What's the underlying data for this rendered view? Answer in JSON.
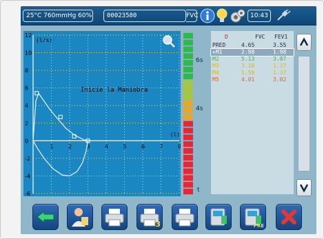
{
  "status": {
    "conditions": "25°C 760mmHg 60%",
    "patient_id": "00023580",
    "mode": "FVC",
    "time": "10:43"
  },
  "chart": {
    "y_unit": "(l/s)",
    "x_unit": "(l)",
    "message": "Inicie la Maniobra",
    "y_ticks": [
      "12",
      "10",
      "8",
      "6",
      "4",
      "2",
      "0",
      "-2",
      "-4",
      "-6"
    ],
    "x_ticks": [
      "1",
      "2",
      "3",
      "4",
      "5",
      "6",
      "7",
      "8"
    ]
  },
  "chart_data": {
    "type": "line",
    "xlabel": "(l)",
    "ylabel": "(l/s)",
    "xlim": [
      0,
      8
    ],
    "ylim": [
      -6,
      12
    ],
    "grid": true,
    "series": [
      {
        "values": [
          [
            0,
            0
          ],
          [
            0.15,
            4.5
          ],
          [
            0.3,
            5.4
          ],
          [
            0.5,
            4.8
          ],
          [
            0.9,
            3.6
          ],
          [
            1.3,
            2.6
          ],
          [
            1.8,
            1.4
          ],
          [
            2.3,
            0.6
          ],
          [
            2.8,
            0.1
          ],
          [
            3.0,
            0
          ]
        ]
      },
      {
        "values": [
          [
            3.0,
            0
          ],
          [
            2.9,
            -1.2
          ],
          [
            2.7,
            -2.5
          ],
          [
            2.4,
            -3.5
          ],
          [
            2.0,
            -4.0
          ],
          [
            1.6,
            -3.9
          ],
          [
            1.1,
            -3.2
          ],
          [
            0.6,
            -2.0
          ],
          [
            0.25,
            -0.9
          ],
          [
            0,
            0
          ]
        ]
      }
    ],
    "markers": [
      [
        0.2,
        5.4
      ],
      [
        1.5,
        2.7
      ],
      [
        2.25,
        0.5
      ],
      [
        3.0,
        0
      ]
    ]
  },
  "timer": {
    "labels": [
      "6s",
      "4s",
      "t"
    ]
  },
  "results": {
    "headers": [
      "D",
      "FVC",
      "FEV1"
    ],
    "rows": [
      {
        "label": "PRED",
        "fvc": "4.65",
        "fev1": "3.55",
        "color": "#1b2a3a"
      },
      {
        "label": "▸M1",
        "fvc": "2.98",
        "fev1": "1.98",
        "color": "#ffffff"
      },
      {
        "label": "M2",
        "fvc": "5.13",
        "fev1": "3.87",
        "color": "#47b33e"
      },
      {
        "label": "M3",
        "fvc": "3.10",
        "fev1": "1.37",
        "color": "#e3b31a"
      },
      {
        "label": "M4",
        "fvc": "1.50",
        "fev1": "1.37",
        "color": "#e3b31a"
      },
      {
        "label": "M5",
        "fvc": "4.01",
        "fev1": "3.02",
        "color": "#e8642a"
      }
    ]
  },
  "icons": {
    "info": "info-icon",
    "bulb": "lightbulb-icon",
    "settings": "settings-icon",
    "power": "power-plug-icon"
  },
  "toolbar": [
    {
      "name": "back-button",
      "icon": "arrow-left-icon"
    },
    {
      "name": "patient-button",
      "icon": "doctor-patient-icon"
    },
    {
      "name": "print-button",
      "icon": "printer-icon"
    },
    {
      "name": "print-copies-button",
      "icon": "printer-icon",
      "badge": "3"
    },
    {
      "name": "print-email-button",
      "icon": "printer-icon"
    },
    {
      "name": "post-test-button",
      "icon": "device-icon"
    },
    {
      "name": "pre-test-button",
      "icon": "device-icon",
      "badge": "PRE"
    },
    {
      "name": "delete-button",
      "icon": "close-icon"
    }
  ]
}
